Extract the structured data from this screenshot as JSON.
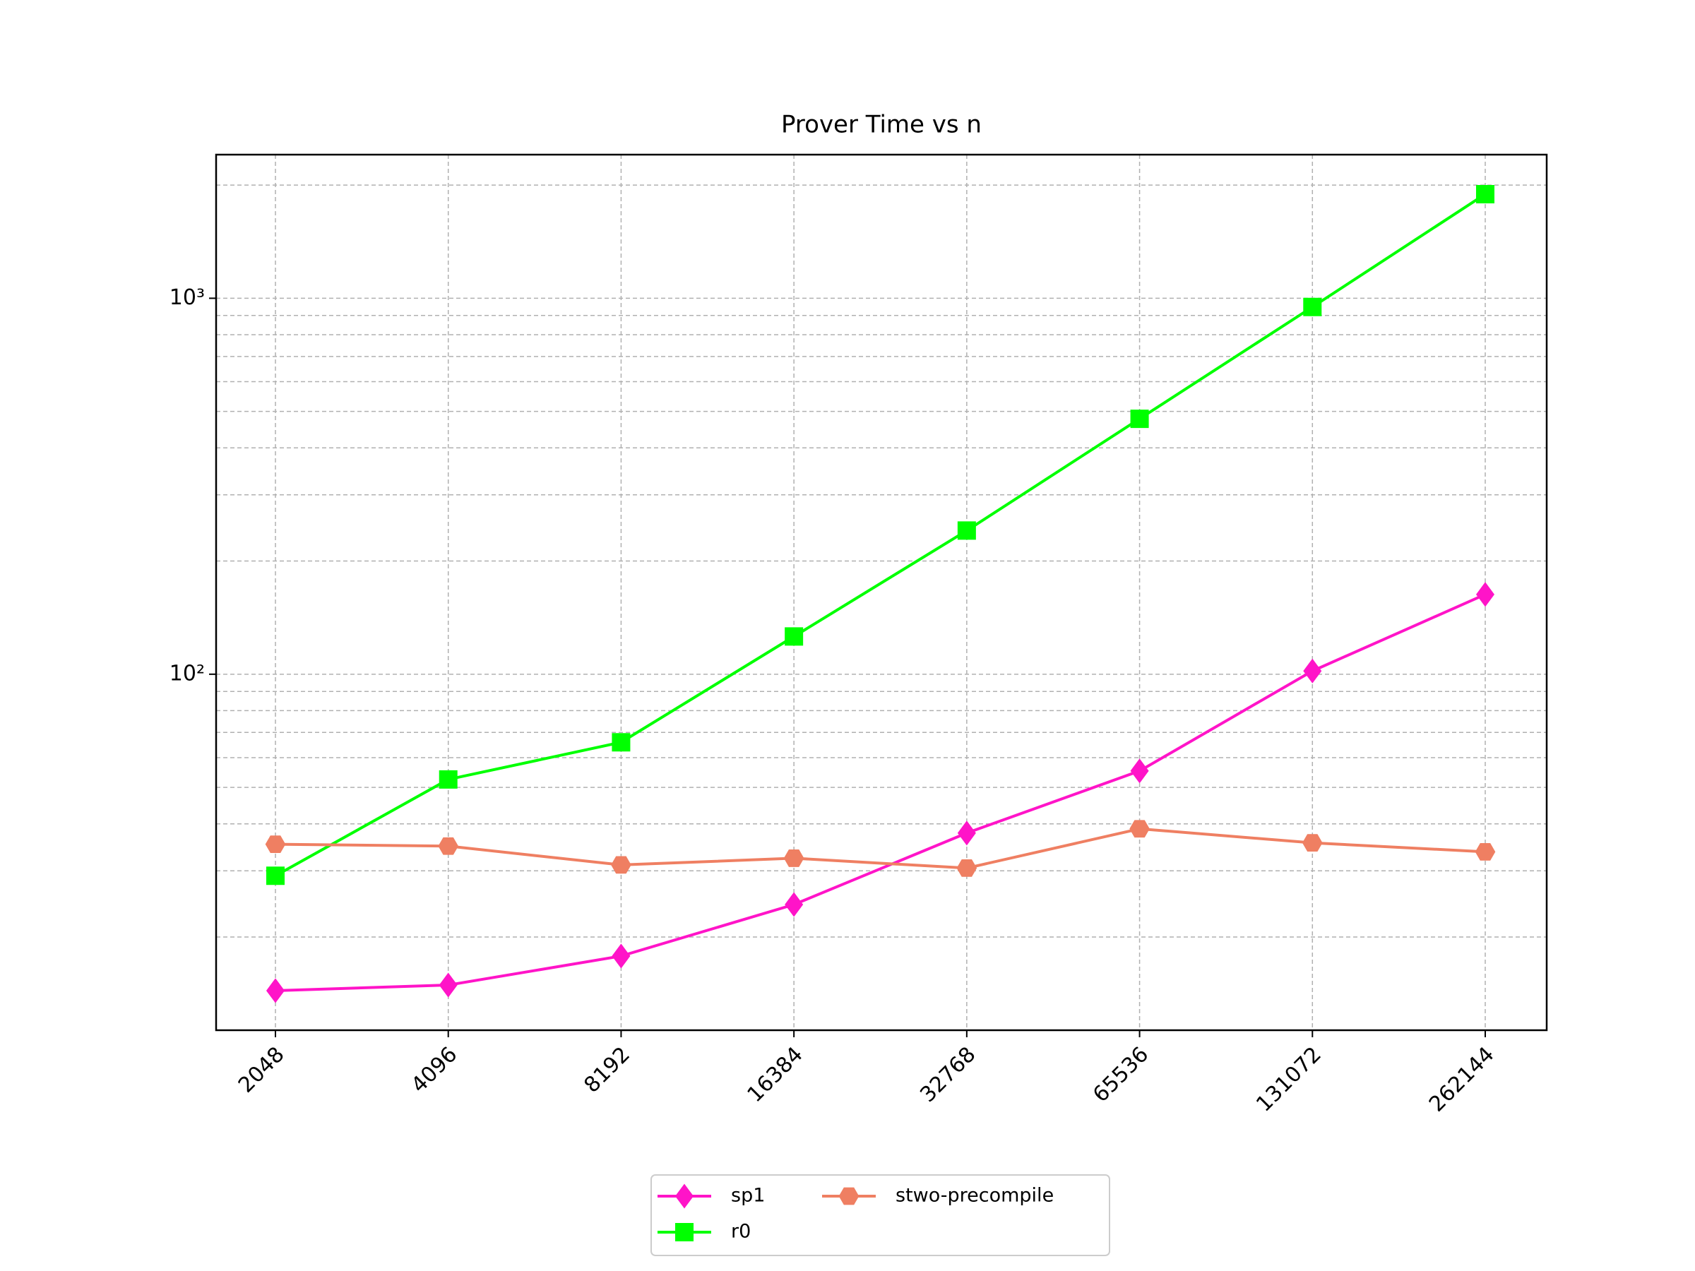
{
  "chart_data": {
    "type": "line",
    "title": "Prover Time vs n",
    "categories": [
      "2048",
      "4096",
      "8192",
      "16384",
      "32768",
      "65536",
      "131072",
      "262144"
    ],
    "yscale": "log",
    "ylim": [
      11.3,
      2410
    ],
    "yticks": [
      {
        "value": 100,
        "label": "10²"
      },
      {
        "value": 1000,
        "label": "10³"
      }
    ],
    "yminorticks": [
      20,
      30,
      40,
      50,
      60,
      70,
      80,
      90,
      200,
      300,
      400,
      500,
      600,
      700,
      800,
      900,
      2000
    ],
    "grid": true,
    "legend": "below",
    "series": [
      {
        "name": "sp1",
        "color": "#ff14c8",
        "marker": "diamond",
        "values": [
          14.4,
          14.9,
          17.8,
          24.4,
          37.8,
          55.3,
          102,
          163
        ]
      },
      {
        "name": "r0",
        "color": "#00ff00",
        "marker": "square",
        "values": [
          29.1,
          52.5,
          65.9,
          126,
          241,
          478,
          948,
          1892
        ]
      },
      {
        "name": "stwo-precompile",
        "color": "#ef7f62",
        "marker": "hexagon",
        "values": [
          35.3,
          34.9,
          31.1,
          32.4,
          30.5,
          38.8,
          35.6,
          33.7
        ]
      }
    ]
  }
}
